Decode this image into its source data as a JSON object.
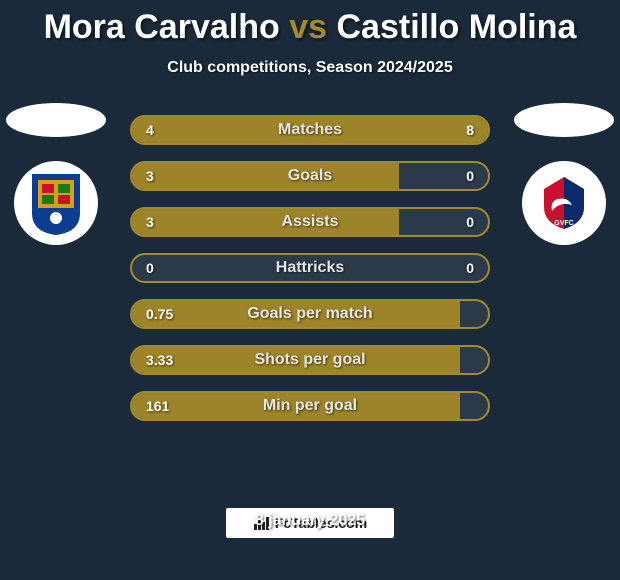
{
  "title": {
    "player1": "Mora Carvalho",
    "vs": "vs",
    "player2": "Castillo Molina"
  },
  "subtitle": "Club competitions, Season 2024/2025",
  "colors": {
    "bg": "#1a2a3a",
    "accent": "#9d8428",
    "accent_border": "#a38a2a",
    "bar_bg": "#2a3a4a",
    "text": "#ffffff"
  },
  "club_left": {
    "name": "porto",
    "shield_bg": "#0b3d91",
    "shield_accent": "#d4a017"
  },
  "club_right": {
    "name": "gil-vicente",
    "shield_bg": "#c9102e",
    "shield_accent": "#0a2a6b"
  },
  "bars": [
    {
      "label": "Matches",
      "left_val": "4",
      "right_val": "8",
      "left_pct": 33,
      "right_pct": 67
    },
    {
      "label": "Goals",
      "left_val": "3",
      "right_val": "0",
      "left_pct": 75,
      "right_pct": 0
    },
    {
      "label": "Assists",
      "left_val": "3",
      "right_val": "0",
      "left_pct": 75,
      "right_pct": 0
    },
    {
      "label": "Hattricks",
      "left_val": "0",
      "right_val": "0",
      "left_pct": 0,
      "right_pct": 0
    },
    {
      "label": "Goals per match",
      "left_val": "0.75",
      "right_val": "",
      "left_pct": 92,
      "right_pct": 0
    },
    {
      "label": "Shots per goal",
      "left_val": "3.33",
      "right_val": "",
      "left_pct": 92,
      "right_pct": 0
    },
    {
      "label": "Min per goal",
      "left_val": "161",
      "right_val": "",
      "left_pct": 92,
      "right_pct": 0
    }
  ],
  "footer_brand": "FcTables.com",
  "date": "8 january 2025"
}
